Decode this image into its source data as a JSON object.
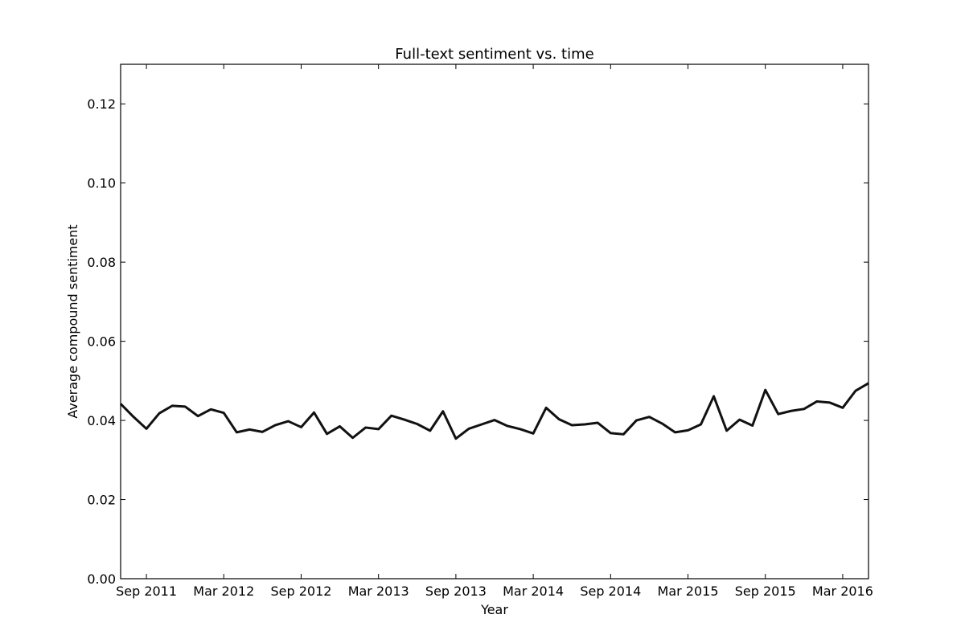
{
  "chart_data": {
    "type": "line",
    "title": "Full-text sentiment vs. time",
    "xlabel": "Year",
    "ylabel": "Average compound sentiment",
    "xlim": [
      "2011-07-01",
      "2016-05-01"
    ],
    "ylim": [
      0,
      0.13
    ],
    "grid": false,
    "x_tick_labels": [
      "Sep 2011",
      "Mar 2012",
      "Sep 2012",
      "Mar 2013",
      "Sep 2013",
      "Mar 2014",
      "Sep 2014",
      "Mar 2015",
      "Sep 2015",
      "Mar 2016"
    ],
    "x_tick_dates": [
      "2011-09-01",
      "2012-03-01",
      "2012-09-01",
      "2013-03-01",
      "2013-09-01",
      "2014-03-01",
      "2014-09-01",
      "2015-03-01",
      "2015-09-01",
      "2016-03-01"
    ],
    "y_tick_labels": [
      "0.00",
      "0.02",
      "0.04",
      "0.06",
      "0.08",
      "0.10",
      "0.12"
    ],
    "y_tick_values": [
      0,
      0.02,
      0.04,
      0.06,
      0.08,
      0.1,
      0.12
    ],
    "x": [
      "2011-07",
      "2011-08",
      "2011-09",
      "2011-10",
      "2011-11",
      "2011-12",
      "2012-01",
      "2012-02",
      "2012-03",
      "2012-04",
      "2012-05",
      "2012-06",
      "2012-07",
      "2012-08",
      "2012-09",
      "2012-10",
      "2012-11",
      "2012-12",
      "2013-01",
      "2013-02",
      "2013-03",
      "2013-04",
      "2013-05",
      "2013-06",
      "2013-07",
      "2013-08",
      "2013-09",
      "2013-10",
      "2013-11",
      "2013-12",
      "2014-01",
      "2014-02",
      "2014-03",
      "2014-04",
      "2014-05",
      "2014-06",
      "2014-07",
      "2014-08",
      "2014-09",
      "2014-10",
      "2014-11",
      "2014-12",
      "2015-01",
      "2015-02",
      "2015-03",
      "2015-04",
      "2015-05",
      "2015-06",
      "2015-07",
      "2015-08",
      "2015-09",
      "2015-10",
      "2015-11",
      "2015-12",
      "2016-01",
      "2016-02",
      "2016-03",
      "2016-04",
      "2016-05"
    ],
    "series": [
      {
        "color": "#111111",
        "values": [
          0.0442,
          0.0409,
          0.0379,
          0.0418,
          0.0437,
          0.0435,
          0.0411,
          0.0428,
          0.0419,
          0.037,
          0.0377,
          0.0371,
          0.0388,
          0.0398,
          0.0383,
          0.042,
          0.0366,
          0.0385,
          0.0356,
          0.0382,
          0.0378,
          0.0412,
          0.0402,
          0.0391,
          0.0374,
          0.0423,
          0.0354,
          0.0379,
          0.039,
          0.0401,
          0.0386,
          0.0378,
          0.0367,
          0.0432,
          0.0403,
          0.0388,
          0.039,
          0.0394,
          0.0368,
          0.0365,
          0.04,
          0.0409,
          0.0392,
          0.037,
          0.0375,
          0.039,
          0.0461,
          0.0374,
          0.0402,
          0.0387,
          0.0477,
          0.0416,
          0.0424,
          0.0429,
          0.0448,
          0.0445,
          0.0432,
          0.0475,
          0.0494
        ]
      }
    ]
  }
}
